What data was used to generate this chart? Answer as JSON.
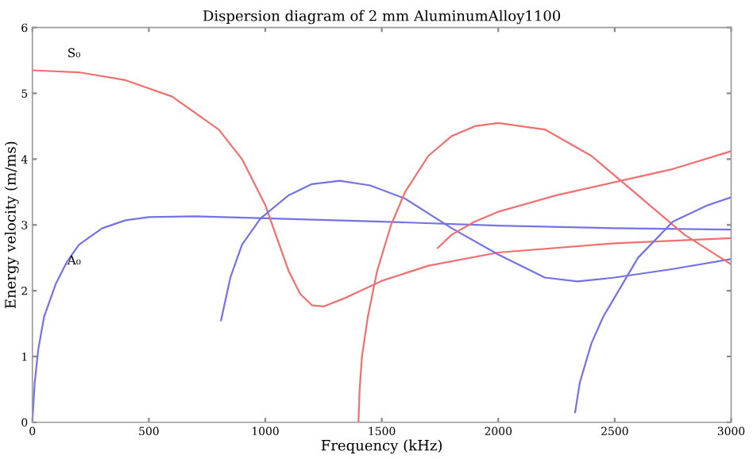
{
  "chart_data": {
    "type": "line",
    "title": "Dispersion diagram of 2 mm AluminumAlloy1100",
    "xlabel": "Frequency (kHz)",
    "ylabel": "Energy velocity (m/ms)",
    "xlim": [
      0,
      3000
    ],
    "ylim": [
      0,
      6
    ],
    "xticks": [
      0,
      500,
      1000,
      1500,
      2000,
      2500,
      3000
    ],
    "yticks": [
      0,
      1,
      2,
      3,
      4,
      5,
      6
    ],
    "grid": false,
    "marker": "none",
    "line_style": "solid",
    "annotations": [
      "S₀",
      "A₀"
    ],
    "series": [
      {
        "color": "#7373e6",
        "x": [
          0,
          10,
          25,
          50,
          100,
          150,
          200,
          300,
          400,
          500,
          700,
          1000,
          1500,
          2000,
          2500,
          3000
        ],
        "values": [
          0,
          0.6,
          1.1,
          1.6,
          2.1,
          2.45,
          2.7,
          2.95,
          3.07,
          3.12,
          3.13,
          3.1,
          3.05,
          2.99,
          2.95,
          2.93
        ]
      },
      {
        "color": "#f07070",
        "x": [
          0,
          200,
          400,
          600,
          800,
          900,
          1000,
          1050,
          1100,
          1150,
          1200,
          1250,
          1350,
          1500,
          1700,
          2000,
          2500,
          3000
        ],
        "values": [
          5.35,
          5.32,
          5.2,
          4.95,
          4.45,
          4.0,
          3.3,
          2.8,
          2.3,
          1.95,
          1.78,
          1.76,
          1.9,
          2.15,
          2.38,
          2.58,
          2.72,
          2.8
        ]
      },
      {
        "color": "#7373e6",
        "x": [
          810,
          850,
          900,
          980,
          1100,
          1200,
          1320,
          1450,
          1600,
          1800,
          2000,
          2200,
          2340,
          2500,
          2750,
          3000
        ],
        "values": [
          1.55,
          2.2,
          2.7,
          3.1,
          3.45,
          3.62,
          3.67,
          3.6,
          3.4,
          2.95,
          2.55,
          2.2,
          2.14,
          2.2,
          2.33,
          2.48
        ]
      },
      {
        "color": "#f07070",
        "x": [
          1400,
          1405,
          1415,
          1440,
          1480,
          1540,
          1600,
          1700,
          1800,
          1900,
          2000,
          2200,
          2400,
          2600,
          2800,
          3000
        ],
        "values": [
          0,
          0.5,
          1.0,
          1.6,
          2.3,
          3.0,
          3.5,
          4.05,
          4.35,
          4.5,
          4.55,
          4.45,
          4.05,
          3.45,
          2.85,
          2.4
        ]
      },
      {
        "color": "#f07070",
        "x": [
          1740,
          1800,
          1900,
          2000,
          2250,
          2500,
          2750,
          3000
        ],
        "values": [
          2.65,
          2.85,
          3.05,
          3.2,
          3.45,
          3.65,
          3.85,
          4.12
        ]
      },
      {
        "color": "#7373e6",
        "x": [
          2330,
          2350,
          2400,
          2450,
          2500,
          2600,
          2750,
          2900,
          3000
        ],
        "values": [
          0.15,
          0.6,
          1.2,
          1.6,
          1.9,
          2.5,
          3.05,
          3.3,
          3.42
        ]
      }
    ]
  }
}
